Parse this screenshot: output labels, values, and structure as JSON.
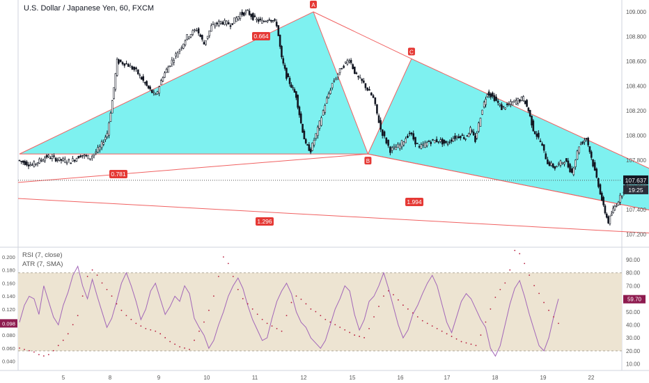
{
  "header": {
    "title": "U.S. Dollar / Japanese Yen, 60, FXCM"
  },
  "indicators": {
    "rsi_label": "RSI (7, close)",
    "atr_label": "ATR (7, SMA)"
  },
  "colors": {
    "up": "#26a69a",
    "candle": "#131722",
    "pattern_fill": "#7ef1f0",
    "pattern_line": "#f06060",
    "zone_fill": "#f4a3a3",
    "rsi_line": "#a266b8",
    "rsi_band": "#ede4d2",
    "atr_dots": "#b71c3c",
    "price_label": "#131722",
    "rsi_value_bg": "#8e1b4f",
    "atr_value_bg": "#8e1b4f"
  },
  "chart_data": [
    {
      "type": "candlestick",
      "title": "U.S. Dollar / Japanese Yen, 60, FXCM",
      "y_axis_ticks": [
        "109.000",
        "108.800",
        "108.600",
        "108.400",
        "108.200",
        "108.000",
        "107.800",
        "107.600",
        "107.400",
        "107.200"
      ],
      "ylim": [
        107.12,
        109.08
      ],
      "x_axis_ticks": [
        "5",
        "8",
        "9",
        "10",
        "11",
        "12",
        "15",
        "16",
        "17",
        "18",
        "19",
        "22"
      ],
      "last_price": "107.637",
      "countdown": "19:25",
      "harmonic_points": [
        {
          "label": "A",
          "day": 10.0,
          "price": 109.0
        },
        {
          "label": "B",
          "day": 11.2,
          "price": 107.85
        },
        {
          "label": "C",
          "day": 12.1,
          "price": 108.62
        }
      ],
      "fib_ratios": [
        "0.664",
        "0.781",
        "1.994",
        "1.296"
      ],
      "resistance_zone": {
        "day_from": 17.2,
        "day_to": 22.7,
        "price_from": 107.63,
        "price_to": 108.02
      },
      "price_path": [
        [
          4.0,
          107.8
        ],
        [
          4.3,
          107.76
        ],
        [
          4.6,
          107.83
        ],
        [
          4.9,
          107.8
        ],
        [
          5.1,
          107.79
        ],
        [
          5.3,
          107.84
        ],
        [
          5.5,
          107.82
        ],
        [
          5.7,
          107.9
        ],
        [
          5.85,
          108.02
        ],
        [
          5.95,
          108.28
        ],
        [
          6.05,
          108.6
        ],
        [
          6.25,
          108.58
        ],
        [
          6.45,
          108.52
        ],
        [
          6.7,
          108.38
        ],
        [
          6.85,
          108.32
        ],
        [
          7.0,
          108.48
        ],
        [
          7.15,
          108.58
        ],
        [
          7.35,
          108.7
        ],
        [
          7.5,
          108.8
        ],
        [
          7.7,
          108.86
        ],
        [
          7.85,
          108.74
        ],
        [
          8.0,
          108.88
        ],
        [
          8.2,
          108.92
        ],
        [
          8.4,
          108.9
        ],
        [
          8.6,
          108.98
        ],
        [
          8.75,
          109.0
        ],
        [
          8.9,
          108.94
        ],
        [
          9.05,
          108.92
        ],
        [
          9.2,
          108.95
        ],
        [
          9.35,
          108.9
        ],
        [
          9.45,
          108.62
        ],
        [
          9.55,
          108.48
        ],
        [
          9.65,
          108.4
        ],
        [
          9.75,
          108.32
        ],
        [
          9.85,
          108.1
        ],
        [
          9.95,
          107.92
        ],
        [
          10.05,
          107.88
        ],
        [
          10.2,
          108.05
        ],
        [
          10.35,
          108.25
        ],
        [
          10.5,
          108.42
        ],
        [
          10.7,
          108.55
        ],
        [
          10.85,
          108.62
        ],
        [
          11.0,
          108.48
        ],
        [
          11.15,
          108.42
        ],
        [
          11.35,
          108.3
        ],
        [
          11.5,
          108.05
        ],
        [
          11.7,
          107.88
        ],
        [
          11.9,
          107.92
        ],
        [
          12.1,
          108.02
        ],
        [
          12.3,
          107.9
        ],
        [
          12.5,
          107.95
        ],
        [
          12.7,
          107.96
        ],
        [
          12.85,
          107.93
        ],
        [
          13.0,
          107.98
        ],
        [
          13.15,
          108.0
        ],
        [
          13.25,
          107.98
        ],
        [
          13.35,
          108.05
        ],
        [
          13.45,
          107.96
        ],
        [
          13.6,
          108.22
        ],
        [
          13.7,
          108.35
        ],
        [
          13.85,
          108.3
        ],
        [
          14.0,
          108.22
        ],
        [
          14.15,
          108.25
        ],
        [
          14.3,
          108.28
        ],
        [
          14.45,
          108.3
        ],
        [
          14.55,
          108.2
        ],
        [
          14.65,
          108.05
        ],
        [
          14.8,
          107.95
        ],
        [
          14.95,
          107.78
        ],
        [
          15.1,
          107.74
        ],
        [
          15.3,
          107.8
        ],
        [
          15.45,
          107.7
        ],
        [
          15.6,
          107.92
        ],
        [
          15.75,
          107.98
        ],
        [
          15.85,
          107.82
        ],
        [
          16.0,
          107.6
        ],
        [
          16.1,
          107.42
        ],
        [
          16.2,
          107.3
        ],
        [
          16.3,
          107.4
        ],
        [
          16.45,
          107.5
        ],
        [
          16.6,
          107.62
        ]
      ]
    },
    {
      "type": "line",
      "title": "RSI (7, close)",
      "y_axis_ticks": [
        "90.00",
        "80.00",
        "70.00",
        "60.00",
        "50.00",
        "40.00",
        "30.00",
        "20.00",
        "10.00"
      ],
      "ylim": [
        3,
        97
      ],
      "band": [
        20,
        80
      ],
      "last_value": "59.70",
      "values": [
        42,
        55,
        62,
        60,
        48,
        70,
        58,
        46,
        40,
        55,
        65,
        78,
        85,
        70,
        60,
        75,
        62,
        50,
        38,
        45,
        58,
        72,
        80,
        70,
        58,
        44,
        52,
        66,
        72,
        60,
        48,
        54,
        62,
        58,
        70,
        64,
        45,
        38,
        32,
        22,
        28,
        40,
        50,
        62,
        70,
        76,
        68,
        55,
        44,
        36,
        28,
        30,
        45,
        58,
        66,
        72,
        64,
        50,
        42,
        38,
        30,
        26,
        22,
        28,
        40,
        52,
        60,
        70,
        66,
        48,
        36,
        44,
        58,
        62,
        70,
        80,
        68,
        54,
        40,
        30,
        36,
        48,
        55,
        64,
        72,
        78,
        70,
        56,
        42,
        34,
        46,
        58,
        64,
        60,
        52,
        44,
        38,
        22,
        16,
        24,
        40,
        56,
        68,
        74,
        62,
        48,
        36,
        24,
        20,
        30,
        46,
        60
      ]
    },
    {
      "type": "scatter",
      "title": "ATR (7, SMA)",
      "y_axis_ticks": [
        "0.200",
        "0.180",
        "0.160",
        "0.140",
        "0.120",
        "0.100",
        "0.080",
        "0.060",
        "0.040"
      ],
      "ylim": [
        0.027,
        0.209
      ],
      "last_value": "0.098",
      "values": [
        0.06,
        0.058,
        0.056,
        0.054,
        0.05,
        0.048,
        0.05,
        0.056,
        0.064,
        0.072,
        0.082,
        0.096,
        0.11,
        0.14,
        0.17,
        0.18,
        0.172,
        0.16,
        0.15,
        0.14,
        0.128,
        0.118,
        0.11,
        0.104,
        0.098,
        0.094,
        0.09,
        0.088,
        0.086,
        0.082,
        0.076,
        0.07,
        0.066,
        0.062,
        0.06,
        0.058,
        0.072,
        0.086,
        0.1,
        0.118,
        0.14,
        0.17,
        0.2,
        0.19,
        0.17,
        0.15,
        0.136,
        0.128,
        0.12,
        0.112,
        0.104,
        0.098,
        0.094,
        0.09,
        0.086,
        0.11,
        0.13,
        0.14,
        0.135,
        0.128,
        0.12,
        0.116,
        0.11,
        0.104,
        0.1,
        0.096,
        0.092,
        0.088,
        0.084,
        0.08,
        0.078,
        0.076,
        0.09,
        0.108,
        0.124,
        0.14,
        0.148,
        0.142,
        0.134,
        0.126,
        0.12,
        0.114,
        0.108,
        0.102,
        0.098,
        0.094,
        0.09,
        0.086,
        0.082,
        0.078,
        0.074,
        0.07,
        0.068,
        0.066,
        0.064,
        0.08,
        0.1,
        0.12,
        0.138,
        0.15,
        0.16,
        0.18,
        0.21,
        0.205,
        0.19,
        0.172,
        0.156,
        0.144,
        0.13,
        0.118,
        0.108,
        0.098
      ]
    }
  ]
}
